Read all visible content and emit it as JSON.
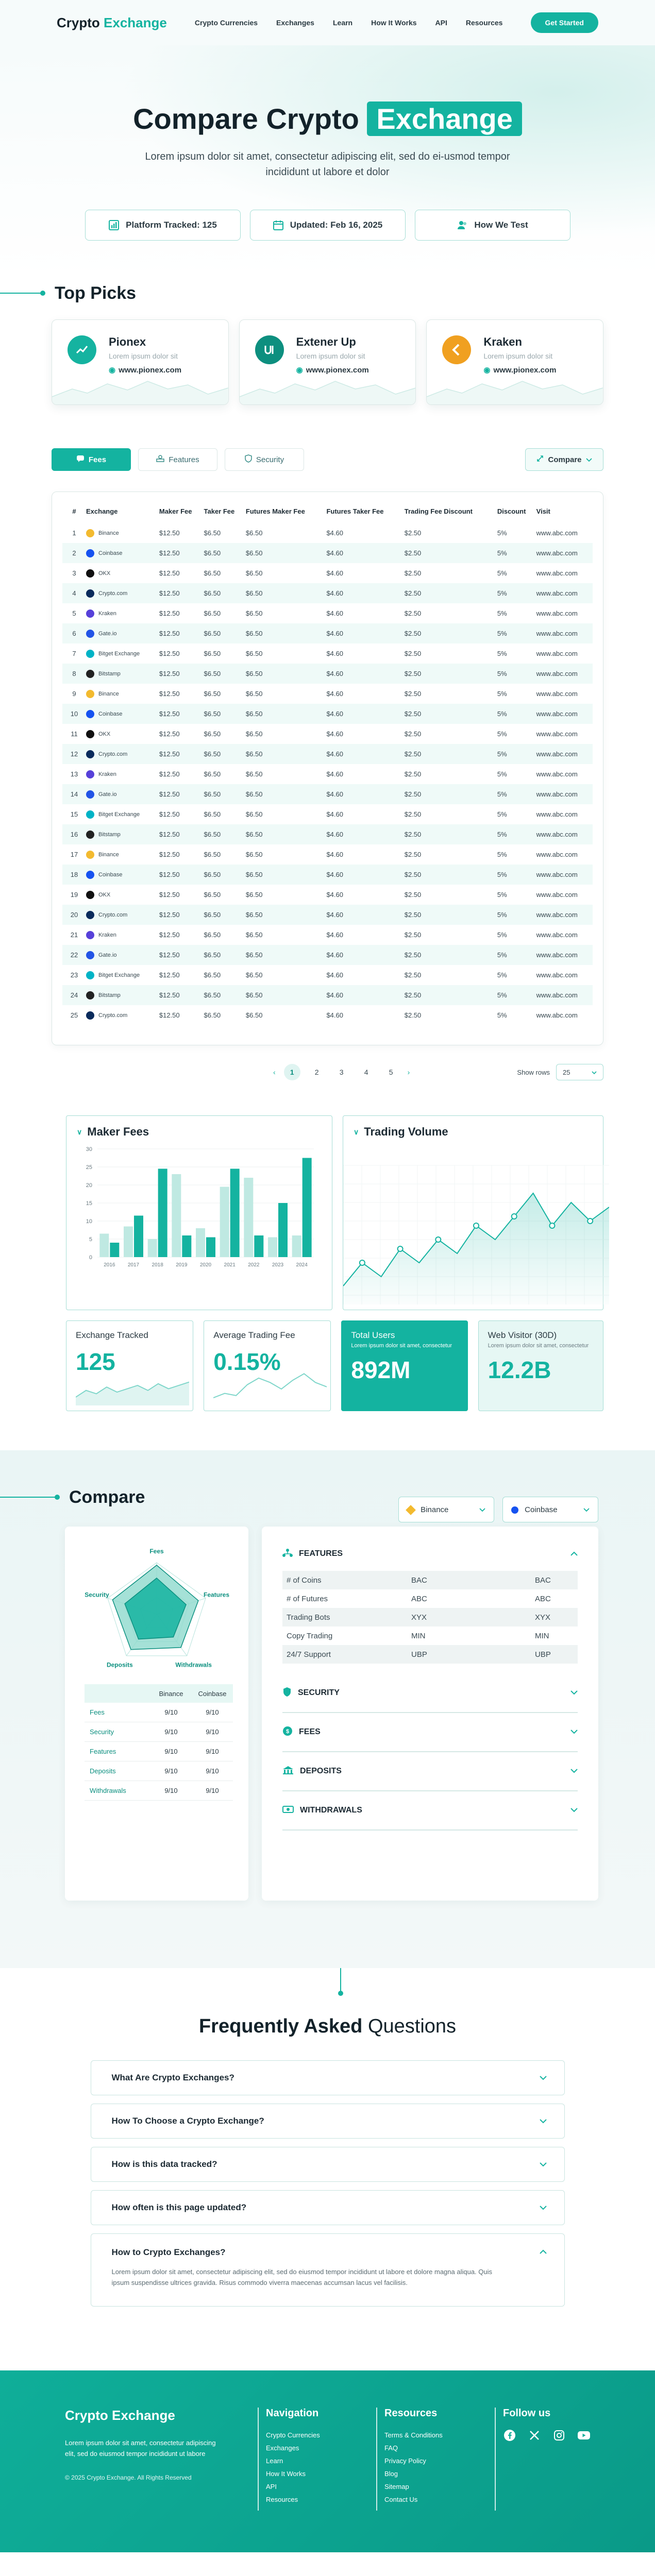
{
  "nav": {
    "brand_main": "Crypto",
    "brand_accent": "Exchange",
    "links": [
      "Crypto Currencies",
      "Exchanges",
      "Learn",
      "How It Works",
      "API",
      "Resources"
    ],
    "cta": "Get Started"
  },
  "hero": {
    "title_main": "Compare Crypto",
    "title_highlight": "Exchange",
    "subtitle": "Lorem ipsum dolor sit amet, consectetur adipiscing elit, sed do ei-usmod tempor incididunt ut labore et dolor",
    "cards": [
      "Platform Tracked: 125",
      "Updated: Feb 16, 2025",
      "How We Test"
    ]
  },
  "top_picks": {
    "title": "Top Picks",
    "items": [
      {
        "name": "Pionex",
        "sub": "Lorem ipsum dolor sit",
        "url": "www.pionex.com",
        "color": "#15b3a0"
      },
      {
        "name": "Extener Up",
        "sub": "Lorem ipsum dolor sit",
        "url": "www.pionex.com",
        "color": "#0d8f7f"
      },
      {
        "name": "Kraken",
        "sub": "Lorem ipsum dolor sit",
        "url": "www.pionex.com",
        "color": "#f0a020"
      }
    ]
  },
  "table": {
    "tabs": [
      "Fees",
      "Features",
      "Security"
    ],
    "compare_label": "Compare",
    "columns": [
      "#",
      "Exchange",
      "Maker Fee",
      "Taker Fee",
      "Futures Maker Fee",
      "Futures Taker Fee",
      "Trading Fee Discount",
      "Discount",
      "Visit"
    ],
    "rows": [
      [
        "1",
        "Binance",
        "$12.50",
        "$6.50",
        "$6.50",
        "$4.60",
        "$2.50",
        "5%",
        "www.abc.com"
      ],
      [
        "2",
        "Coinbase",
        "$12.50",
        "$6.50",
        "$6.50",
        "$4.60",
        "$2.50",
        "5%",
        "www.abc.com"
      ],
      [
        "3",
        "OKX",
        "$12.50",
        "$6.50",
        "$6.50",
        "$4.60",
        "$2.50",
        "5%",
        "www.abc.com"
      ],
      [
        "4",
        "Crypto.com",
        "$12.50",
        "$6.50",
        "$6.50",
        "$4.60",
        "$2.50",
        "5%",
        "www.abc.com"
      ],
      [
        "5",
        "Kraken",
        "$12.50",
        "$6.50",
        "$6.50",
        "$4.60",
        "$2.50",
        "5%",
        "www.abc.com"
      ],
      [
        "6",
        "Gate.io",
        "$12.50",
        "$6.50",
        "$6.50",
        "$4.60",
        "$2.50",
        "5%",
        "www.abc.com"
      ],
      [
        "7",
        "Bitget Exchange",
        "$12.50",
        "$6.50",
        "$6.50",
        "$4.60",
        "$2.50",
        "5%",
        "www.abc.com"
      ],
      [
        "8",
        "Bitstamp",
        "$12.50",
        "$6.50",
        "$6.50",
        "$4.60",
        "$2.50",
        "5%",
        "www.abc.com"
      ],
      [
        "9",
        "Binance",
        "$12.50",
        "$6.50",
        "$6.50",
        "$4.60",
        "$2.50",
        "5%",
        "www.abc.com"
      ],
      [
        "10",
        "Coinbase",
        "$12.50",
        "$6.50",
        "$6.50",
        "$4.60",
        "$2.50",
        "5%",
        "www.abc.com"
      ],
      [
        "11",
        "OKX",
        "$12.50",
        "$6.50",
        "$6.50",
        "$4.60",
        "$2.50",
        "5%",
        "www.abc.com"
      ],
      [
        "12",
        "Crypto.com",
        "$12.50",
        "$6.50",
        "$6.50",
        "$4.60",
        "$2.50",
        "5%",
        "www.abc.com"
      ],
      [
        "13",
        "Kraken",
        "$12.50",
        "$6.50",
        "$6.50",
        "$4.60",
        "$2.50",
        "5%",
        "www.abc.com"
      ],
      [
        "14",
        "Gate.io",
        "$12.50",
        "$6.50",
        "$6.50",
        "$4.60",
        "$2.50",
        "5%",
        "www.abc.com"
      ],
      [
        "15",
        "Bitget Exchange",
        "$12.50",
        "$6.50",
        "$6.50",
        "$4.60",
        "$2.50",
        "5%",
        "www.abc.com"
      ],
      [
        "16",
        "Bitstamp",
        "$12.50",
        "$6.50",
        "$6.50",
        "$4.60",
        "$2.50",
        "5%",
        "www.abc.com"
      ],
      [
        "17",
        "Binance",
        "$12.50",
        "$6.50",
        "$6.50",
        "$4.60",
        "$2.50",
        "5%",
        "www.abc.com"
      ],
      [
        "18",
        "Coinbase",
        "$12.50",
        "$6.50",
        "$6.50",
        "$4.60",
        "$2.50",
        "5%",
        "www.abc.com"
      ],
      [
        "19",
        "OKX",
        "$12.50",
        "$6.50",
        "$6.50",
        "$4.60",
        "$2.50",
        "5%",
        "www.abc.com"
      ],
      [
        "20",
        "Crypto.com",
        "$12.50",
        "$6.50",
        "$6.50",
        "$4.60",
        "$2.50",
        "5%",
        "www.abc.com"
      ],
      [
        "21",
        "Kraken",
        "$12.50",
        "$6.50",
        "$6.50",
        "$4.60",
        "$2.50",
        "5%",
        "www.abc.com"
      ],
      [
        "22",
        "Gate.io",
        "$12.50",
        "$6.50",
        "$6.50",
        "$4.60",
        "$2.50",
        "5%",
        "www.abc.com"
      ],
      [
        "23",
        "Bitget Exchange",
        "$12.50",
        "$6.50",
        "$6.50",
        "$4.60",
        "$2.50",
        "5%",
        "www.abc.com"
      ],
      [
        "24",
        "Bitstamp",
        "$12.50",
        "$6.50",
        "$6.50",
        "$4.60",
        "$2.50",
        "5%",
        "www.abc.com"
      ],
      [
        "25",
        "Crypto.com",
        "$12.50",
        "$6.50",
        "$6.50",
        "$4.60",
        "$2.50",
        "5%",
        "www.abc.com"
      ]
    ],
    "coin_colors": {
      "Binance": "#f3ba2f",
      "Coinbase": "#1652f0",
      "OKX": "#111111",
      "Crypto.com": "#0a2b5c",
      "Kraken": "#5741d9",
      "Gate.io": "#2354e6",
      "Bitget Exchange": "#00b3c6",
      "Bitstamp": "#222222"
    },
    "pages": [
      "1",
      "2",
      "3",
      "4",
      "5"
    ],
    "active_page": "1",
    "show_rows_label": "Show rows",
    "show_rows_value": "25"
  },
  "chart_data": [
    {
      "type": "bar",
      "title": "Maker Fees",
      "categories": [
        "2016",
        "2017",
        "2018",
        "2019",
        "2020",
        "2021",
        "2022",
        "2023",
        "2024"
      ],
      "series": [
        {
          "name": "primary",
          "values": [
            4,
            11.5,
            24.5,
            6,
            5.5,
            24.5,
            6,
            15,
            27.5
          ],
          "color": "#14b3a0"
        },
        {
          "name": "secondary",
          "values": [
            6.5,
            8.5,
            5,
            23,
            8,
            19.5,
            22,
            5.5,
            6
          ],
          "color": "#bfe9e2"
        }
      ],
      "ylim": [
        0,
        30
      ],
      "yticks": [
        "0",
        "5",
        "10",
        "15",
        "20",
        "25",
        "30"
      ]
    },
    {
      "type": "area",
      "title": "Trading Volume",
      "values": [
        4,
        9,
        6,
        12,
        9,
        14,
        11,
        17,
        14,
        19,
        24,
        17,
        22,
        18,
        21
      ],
      "ylim": [
        0,
        30
      ]
    },
    {
      "type": "line",
      "title": "Exchange Tracked",
      "values": [
        5,
        9,
        7,
        11,
        8,
        10,
        12,
        9,
        13,
        10,
        12,
        14
      ]
    },
    {
      "type": "line",
      "title": "Average Trading Fee",
      "values": [
        4,
        6,
        5,
        10,
        13,
        11,
        8,
        12,
        15,
        11,
        9
      ]
    }
  ],
  "stats": [
    {
      "label": "Exchange Tracked",
      "value": "125",
      "small": ""
    },
    {
      "label": "Average Trading Fee",
      "value": "0.15%",
      "small": ""
    },
    {
      "label": "Total Users",
      "value": "892M",
      "small": "Lorem ipsum dolor sit amet, consectetur"
    },
    {
      "label": "Web Visitor (30D)",
      "value": "12.2B",
      "small": "Lorem ipsum dolor sit amet, consectetur"
    }
  ],
  "compare": {
    "title": "Compare",
    "select_a": "Binance",
    "select_b": "Coinbase",
    "radar_axes": [
      "Fees",
      "Features",
      "Withdrawals",
      "Deposits",
      "Security"
    ],
    "radar_a": [
      0.95,
      0.85,
      0.8,
      0.85,
      0.9
    ],
    "radar_b": [
      0.7,
      0.6,
      0.55,
      0.6,
      0.65
    ],
    "score_header": [
      "",
      "Binance",
      "Coinbase"
    ],
    "scores": [
      [
        "Fees",
        "9/10",
        "9/10"
      ],
      [
        "Security",
        "9/10",
        "9/10"
      ],
      [
        "Features",
        "9/10",
        "9/10"
      ],
      [
        "Deposits",
        "9/10",
        "9/10"
      ],
      [
        "Withdrawals",
        "9/10",
        "9/10"
      ]
    ],
    "features_title": "FEATURES",
    "features": [
      [
        "# of Coins",
        "BAC",
        "BAC"
      ],
      [
        "# of Futures",
        "ABC",
        "ABC"
      ],
      [
        "Trading Bots",
        "XYX",
        "XYX"
      ],
      [
        "Copy Trading",
        "MIN",
        "MIN"
      ],
      [
        "24/7 Support",
        "UBP",
        "UBP"
      ]
    ],
    "sections": [
      "SECURITY",
      "FEES",
      "DEPOSITS",
      "WITHDRAWALS"
    ]
  },
  "faq": {
    "title_bold": "Frequently Asked",
    "title_light": "Questions",
    "items": [
      "What Are Crypto Exchanges?",
      "How To Choose a Crypto Exchange?",
      "How is this data tracked?",
      "How often is this page updated?"
    ],
    "open_question": "How to Crypto Exchanges?",
    "open_answer": "Lorem ipsum dolor sit amet, consectetur adipiscing elit, sed do eiusmod tempor incididunt ut labore et dolore magna aliqua. Quis ipsum suspendisse ultrices gravida. Risus commodo viverra maecenas accumsan lacus vel facilisis."
  },
  "footer": {
    "brand": "Crypto Exchange",
    "text": "Lorem ipsum dolor sit amet, consectetur adipiscing elit, sed do eiusmod tempor incididunt ut labore",
    "copyright": "© 2025 Crypto Exchange. All Rights Reserved",
    "nav_title": "Navigation",
    "nav_links": [
      "Crypto Currencies",
      "Exchanges",
      "Learn",
      "How It Works",
      "API",
      "Resources"
    ],
    "res_title": "Resources",
    "res_links": [
      "Terms & Conditions",
      "FAQ",
      "Privacy Policy",
      "Blog",
      "Sitemap",
      "Contact Us"
    ],
    "follow_title": "Follow us"
  }
}
